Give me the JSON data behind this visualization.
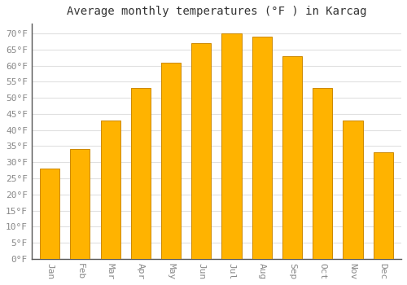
{
  "title": "Average monthly temperatures (°F ) in Karcag",
  "months": [
    "Jan",
    "Feb",
    "Mar",
    "Apr",
    "May",
    "Jun",
    "Jul",
    "Aug",
    "Sep",
    "Oct",
    "Nov",
    "Dec"
  ],
  "values": [
    28,
    34,
    43,
    53,
    61,
    67,
    70,
    69,
    63,
    53,
    43,
    33
  ],
  "bar_color_center": "#FFB300",
  "bar_color_edge": "#F5A000",
  "bar_border_color": "#CC8800",
  "background_color": "#FFFFFF",
  "grid_color": "#E0E0E0",
  "text_color": "#888888",
  "title_color": "#333333",
  "spine_color": "#555555",
  "ylim": [
    0,
    73
  ],
  "yticks": [
    0,
    5,
    10,
    15,
    20,
    25,
    30,
    35,
    40,
    45,
    50,
    55,
    60,
    65,
    70
  ],
  "ylabel_suffix": "°F",
  "title_fontsize": 10,
  "tick_fontsize": 8,
  "font_family": "monospace",
  "bar_width": 0.65
}
